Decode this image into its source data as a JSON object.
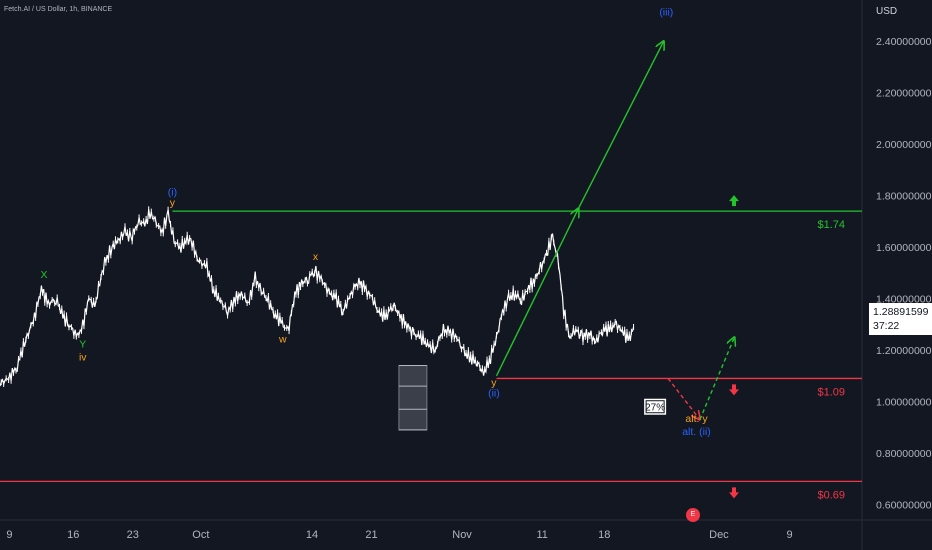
{
  "header": {
    "symbol": "Fetch.AI / US Dollar, 1h, BINANCE",
    "currency": "USD"
  },
  "price_tag": {
    "value": "1.28891599",
    "countdown": "37:22"
  },
  "badge": {
    "text": "E"
  },
  "colors": {
    "background": "#131722",
    "candles": "#ffffff",
    "green": "#22c32b",
    "red": "#f23645",
    "blue": "#2962ff",
    "orange": "#f7a21b",
    "axis_text": "#b2b5be"
  },
  "chart_data": {
    "type": "line",
    "title": "",
    "y_axis": {
      "ticks": [
        2.4,
        2.2,
        2.0,
        1.8,
        1.6,
        1.4,
        1.2,
        1.0,
        0.8,
        0.6
      ],
      "tick_labels": [
        "2.40000000",
        "2.20000000",
        "2.00000000",
        "1.80000000",
        "1.60000000",
        "1.40000000",
        "1.20000000",
        "1.00000000",
        "0.80000000",
        "0.60000000"
      ],
      "ylim": [
        0.54,
        2.56
      ]
    },
    "x_axis": {
      "xlim": [
        0,
        100
      ],
      "ticks": [
        {
          "x": 1.1,
          "label": "9"
        },
        {
          "x": 8.5,
          "label": "16"
        },
        {
          "x": 15.4,
          "label": "23"
        },
        {
          "x": 23.3,
          "label": "Oct"
        },
        {
          "x": 36.2,
          "label": "14"
        },
        {
          "x": 43.1,
          "label": "21"
        },
        {
          "x": 53.6,
          "label": "Nov"
        },
        {
          "x": 62.9,
          "label": "11"
        },
        {
          "x": 70.1,
          "label": "18"
        },
        {
          "x": 83.4,
          "label": "Dec"
        },
        {
          "x": 91.6,
          "label": "9"
        }
      ]
    },
    "price_series": [
      [
        0,
        1.07
      ],
      [
        1,
        1.09
      ],
      [
        2,
        1.14
      ],
      [
        3,
        1.24
      ],
      [
        4,
        1.33
      ],
      [
        4.8,
        1.44
      ],
      [
        5.6,
        1.38
      ],
      [
        6.5,
        1.4
      ],
      [
        7.3,
        1.33
      ],
      [
        8,
        1.3
      ],
      [
        9,
        1.25
      ],
      [
        9.6,
        1.3
      ],
      [
        10.3,
        1.4
      ],
      [
        11,
        1.37
      ],
      [
        12,
        1.53
      ],
      [
        13,
        1.6
      ],
      [
        13.8,
        1.63
      ],
      [
        14.5,
        1.66
      ],
      [
        15.2,
        1.63
      ],
      [
        16,
        1.7
      ],
      [
        16.8,
        1.69
      ],
      [
        17.4,
        1.73
      ],
      [
        18,
        1.7
      ],
      [
        18.8,
        1.66
      ],
      [
        19.5,
        1.73
      ],
      [
        20.2,
        1.62
      ],
      [
        21,
        1.6
      ],
      [
        22,
        1.64
      ],
      [
        23,
        1.55
      ],
      [
        24,
        1.52
      ],
      [
        24.8,
        1.43
      ],
      [
        25.6,
        1.39
      ],
      [
        26.4,
        1.35
      ],
      [
        27.3,
        1.4
      ],
      [
        28,
        1.42
      ],
      [
        28.8,
        1.38
      ],
      [
        29.6,
        1.48
      ],
      [
        30.3,
        1.43
      ],
      [
        31,
        1.4
      ],
      [
        31.8,
        1.34
      ],
      [
        32.6,
        1.31
      ],
      [
        33.4,
        1.27
      ],
      [
        34.2,
        1.42
      ],
      [
        35,
        1.46
      ],
      [
        35.8,
        1.48
      ],
      [
        36.5,
        1.51
      ],
      [
        37.4,
        1.47
      ],
      [
        38.2,
        1.42
      ],
      [
        39,
        1.4
      ],
      [
        39.8,
        1.35
      ],
      [
        40.6,
        1.41
      ],
      [
        41.5,
        1.47
      ],
      [
        42.3,
        1.44
      ],
      [
        43.2,
        1.4
      ],
      [
        44,
        1.34
      ],
      [
        44.8,
        1.33
      ],
      [
        45.6,
        1.38
      ],
      [
        46.4,
        1.33
      ],
      [
        47.2,
        1.3
      ],
      [
        48,
        1.26
      ],
      [
        48.8,
        1.25
      ],
      [
        49.6,
        1.22
      ],
      [
        50.5,
        1.2
      ],
      [
        51.3,
        1.28
      ],
      [
        52.1,
        1.27
      ],
      [
        53,
        1.25
      ],
      [
        53.8,
        1.19
      ],
      [
        54.6,
        1.17
      ],
      [
        55.4,
        1.15
      ],
      [
        56.1,
        1.11
      ],
      [
        56.9,
        1.17
      ],
      [
        57.6,
        1.25
      ],
      [
        58.3,
        1.35
      ],
      [
        59,
        1.4
      ],
      [
        59.8,
        1.42
      ],
      [
        60.5,
        1.39
      ],
      [
        61.2,
        1.44
      ],
      [
        62,
        1.47
      ],
      [
        62.7,
        1.52
      ],
      [
        63.4,
        1.57
      ],
      [
        64.1,
        1.64
      ],
      [
        64.8,
        1.54
      ],
      [
        65.4,
        1.35
      ],
      [
        66.1,
        1.25
      ],
      [
        66.8,
        1.28
      ],
      [
        67.5,
        1.25
      ],
      [
        68.3,
        1.27
      ],
      [
        69.1,
        1.23
      ],
      [
        69.9,
        1.28
      ],
      [
        70.7,
        1.28
      ],
      [
        71.5,
        1.3
      ],
      [
        72.2,
        1.27
      ],
      [
        73,
        1.24
      ],
      [
        73.5,
        1.29
      ]
    ],
    "wave_labels": [
      {
        "x": 5.1,
        "y": 1.48,
        "text": "X",
        "color": "#22c32b"
      },
      {
        "x": 9.6,
        "y": 1.21,
        "text": "Y",
        "color": "#22c32b"
      },
      {
        "x": 9.6,
        "y": 1.16,
        "text": "iv",
        "color": "#f7a21b"
      },
      {
        "x": 20.0,
        "y": 1.8,
        "text": "(i)",
        "color": "#2962ff"
      },
      {
        "x": 20.0,
        "y": 1.76,
        "text": "y",
        "color": "#f7a21b"
      },
      {
        "x": 32.8,
        "y": 1.23,
        "text": "w",
        "color": "#f7a21b"
      },
      {
        "x": 36.6,
        "y": 1.55,
        "text": "x",
        "color": "#f7a21b"
      },
      {
        "x": 57.3,
        "y": 1.06,
        "text": "y",
        "color": "#f7a21b"
      },
      {
        "x": 57.3,
        "y": 1.02,
        "text": "(ii)",
        "color": "#2962ff"
      },
      {
        "x": 77.3,
        "y": 2.5,
        "text": "(iii)",
        "color": "#2962ff"
      },
      {
        "x": 80.8,
        "y": 0.92,
        "text": "alt. y",
        "color": "#f7a21b"
      },
      {
        "x": 80.8,
        "y": 0.87,
        "text": "alt. (ii)",
        "color": "#2962ff"
      }
    ],
    "horizontal_levels": [
      {
        "y": 1.74,
        "label": "$1.74",
        "color": "#22c32b",
        "x_start": 20.0,
        "arrow": "up"
      },
      {
        "y": 1.09,
        "label": "$1.09",
        "color": "#f23645",
        "x_start": 57.6,
        "arrow": "down"
      },
      {
        "y": 0.69,
        "label": "$0.69",
        "color": "#f23645",
        "x_start": 0,
        "arrow": "down"
      }
    ],
    "projection_lines": [
      {
        "from": [
          57.6,
          1.1
        ],
        "to": [
          67.1,
          1.75
        ],
        "color": "#22c32b",
        "style": "solid",
        "arrow": true
      },
      {
        "from": [
          67.1,
          1.75
        ],
        "to": [
          77.0,
          2.4
        ],
        "color": "#22c32b",
        "style": "solid",
        "arrow": true
      },
      {
        "from": [
          77.5,
          1.09
        ],
        "to": [
          81.2,
          0.93
        ],
        "color": "#f23645",
        "style": "dashed",
        "arrow": true
      },
      {
        "from": [
          81.2,
          0.93
        ],
        "to": [
          85.2,
          1.25
        ],
        "color": "#22c32b",
        "style": "dashed",
        "arrow": true
      }
    ],
    "percent_label": {
      "x": 76.0,
      "y": 0.98,
      "text": "27%"
    },
    "volume_box": {
      "x": 47.9,
      "y_top": 1.14,
      "y_bottom": 0.89,
      "bands": [
        1.14,
        1.06,
        0.97,
        0.89
      ]
    }
  }
}
